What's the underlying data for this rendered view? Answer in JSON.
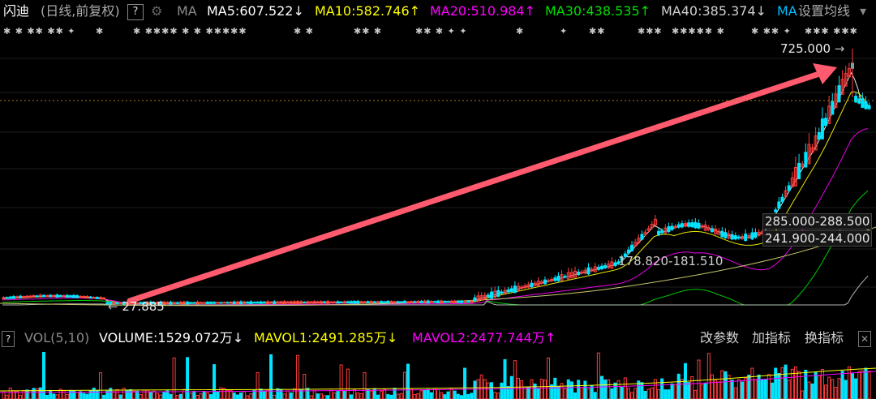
{
  "header": {
    "stock_name": "闪迪",
    "period": "(日线,前复权)",
    "help_label": "?",
    "ma_label": "MA",
    "settings_label": "设置均线",
    "ma_items": [
      {
        "text": "MA5:607.522",
        "arrow": "↓",
        "color": "#ffffff"
      },
      {
        "text": "MA10:582.746",
        "arrow": "↑",
        "color": "#ffff00"
      },
      {
        "text": "MA20:510.984",
        "arrow": "↑",
        "color": "#ff00ff"
      },
      {
        "text": "MA30:438.535",
        "arrow": "↑",
        "color": "#00e000"
      },
      {
        "text": "MA40:385.374",
        "arrow": "↓",
        "color": "#d0d0d0"
      },
      {
        "text": "MA",
        "arrow": "",
        "color": "#00c0ff"
      }
    ]
  },
  "annotations": {
    "high_price": "725.000",
    "low_price": "27.885",
    "range_1": "285.000-288.500",
    "range_2": "241.900-244.000",
    "range_3": "178.820-181.510"
  },
  "volume_bar": {
    "question": "?",
    "indicator": "VOL(5,10)",
    "volume": "VOLUME:1529.072万",
    "volume_arrow": "↓",
    "mavol1": "MAVOL1:2491.285万",
    "mavol1_arrow": "↓",
    "mavol2": "MAVOL2:2477.744万",
    "mavol2_arrow": "↑",
    "buttons": [
      "改参数",
      "加指标",
      "换指标"
    ],
    "close": "✕"
  },
  "colors": {
    "up": "#ff3b3b",
    "down": "#00e5ff",
    "arrow": "#ff5a6e",
    "ma5": "#ffffff",
    "ma10": "#ffff00",
    "ma20": "#ff00ff",
    "ma30": "#00e000",
    "ma40": "#c8c8c8"
  }
}
